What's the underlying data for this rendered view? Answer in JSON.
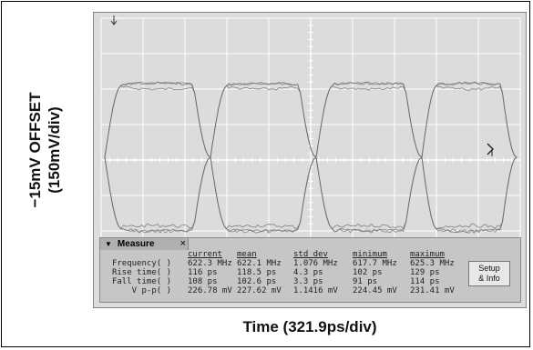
{
  "axis_labels": {
    "y_line1": "−15mV OFFSET",
    "y_line2": "(150mV/div)",
    "x": "Time (321.9ps/div)"
  },
  "measure_panel": {
    "tab_label": "Measure",
    "close_glyph": "×",
    "collapse_glyph": "▼",
    "columns": [
      "current",
      "mean",
      "std dev",
      "minimum",
      "maximum"
    ],
    "rows": [
      {
        "label": "Frequency( )",
        "values": [
          "622.3 MHz",
          "622.1 MHz",
          "1.076 MHz",
          "617.7 MHz",
          "625.3 MHz"
        ]
      },
      {
        "label": "Rise time( )",
        "values": [
          "116 ps",
          "118.5 ps",
          "4.3 ps",
          "102 ps",
          "129 ps"
        ]
      },
      {
        "label": "Fall time( )",
        "values": [
          "108 ps",
          "102.6 ps",
          "3.3 ps",
          "91 ps",
          "114 ps"
        ]
      },
      {
        "label": "V p-p( )",
        "values": [
          "226.78 mV",
          "227.62 mV",
          "1.1416 mV",
          "224.45 mV",
          "231.41 mV"
        ]
      }
    ],
    "setup_button": {
      "line1": "Setup",
      "line2": "& Info"
    }
  },
  "icons": {
    "trigger_marker": "down-arrow-marker",
    "level_marker": "right-arrow-marker"
  }
}
